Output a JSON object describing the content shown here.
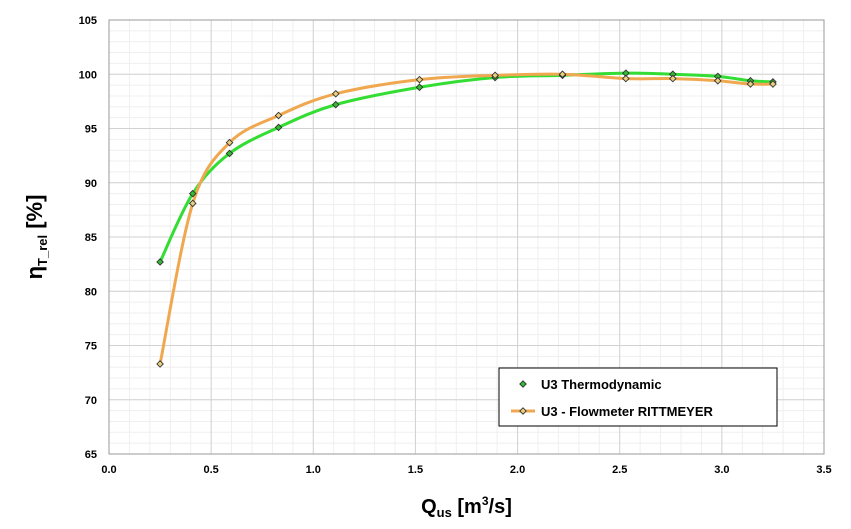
{
  "chart_data": {
    "type": "line",
    "title": "",
    "xlabel": {
      "main": "Q",
      "sub": "us",
      "unit_pre": " [m",
      "sup": "3",
      "unit_post": "/s]"
    },
    "ylabel": {
      "main": "η",
      "sub": "T_rel",
      "unit": " [%]"
    },
    "xlim": [
      0.0,
      3.5
    ],
    "ylim": [
      65,
      105
    ],
    "x_ticks": [
      0.0,
      0.5,
      1.0,
      1.5,
      2.0,
      2.5,
      3.0,
      3.5
    ],
    "x_tick_labels": [
      "0.0",
      "0.5",
      "1.0",
      "1.5",
      "2.0",
      "2.5",
      "3.0",
      "3.5"
    ],
    "y_ticks": [
      65,
      70,
      75,
      80,
      85,
      90,
      95,
      100,
      105
    ],
    "y_tick_labels": [
      "65",
      "70",
      "75",
      "80",
      "85",
      "90",
      "95",
      "100",
      "105"
    ],
    "grid": true,
    "minor_grid": true,
    "legend_position": "bottom-right",
    "series": [
      {
        "name": "U3 Thermodynamic",
        "color": "#33dd33",
        "marker": "diamond",
        "marker_fill": "#33bb33",
        "x": [
          0.25,
          0.41,
          0.59,
          0.83,
          1.11,
          1.52,
          1.89,
          2.22,
          2.53,
          2.76,
          2.98,
          3.14,
          3.25
        ],
        "y": [
          82.7,
          89.0,
          92.7,
          95.1,
          97.2,
          98.8,
          99.7,
          99.9,
          100.1,
          100.0,
          99.8,
          99.4,
          99.3
        ]
      },
      {
        "name": "U3 - Flowmeter RITTMEYER",
        "color": "#f0a850",
        "marker": "diamond",
        "marker_fill": "#e8d080",
        "x": [
          0.25,
          0.41,
          0.59,
          0.83,
          1.11,
          1.52,
          1.89,
          2.22,
          2.53,
          2.76,
          2.98,
          3.14,
          3.25
        ],
        "y": [
          73.3,
          88.1,
          93.7,
          96.2,
          98.2,
          99.5,
          99.9,
          100.0,
          99.6,
          99.6,
          99.4,
          99.1,
          99.1
        ]
      }
    ]
  }
}
